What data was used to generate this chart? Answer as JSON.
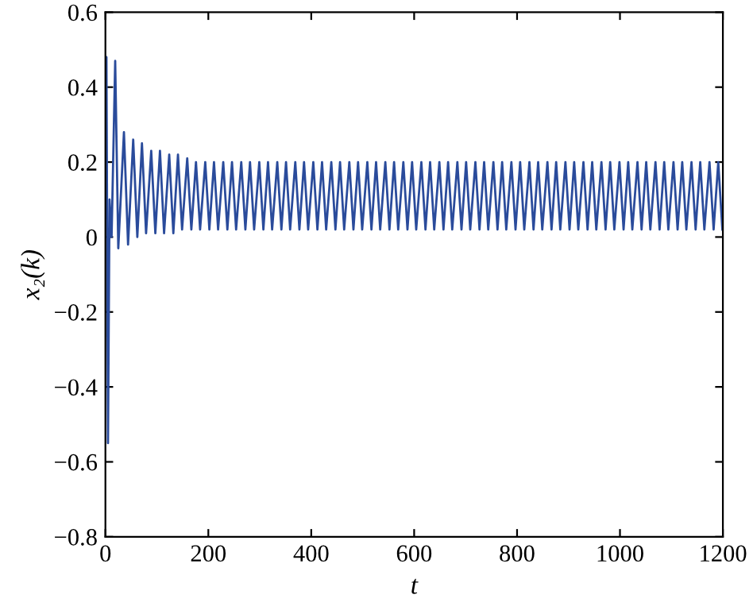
{
  "chart_data": {
    "type": "line",
    "xlabel": "t",
    "ylabel": "x₂(k)",
    "xlim": [
      0,
      1200
    ],
    "ylim": [
      -0.8,
      0.6
    ],
    "xticks": [
      0,
      200,
      400,
      600,
      800,
      1000,
      1200
    ],
    "yticks": [
      {
        "value": -0.8,
        "label": "−0.8"
      },
      {
        "value": -0.6,
        "label": "−0.6"
      },
      {
        "value": -0.4,
        "label": "−0.4"
      },
      {
        "value": -0.2,
        "label": "−0.2"
      },
      0,
      0.2,
      0.4,
      0.6
    ],
    "grid": false,
    "line_style": "solid",
    "marker": "none",
    "series": [
      {
        "color": "#2a4b9b",
        "x": [
          0,
          2,
          5,
          8,
          12,
          19,
          25,
          36,
          44,
          54,
          62,
          71,
          79,
          89,
          97,
          106,
          114,
          124,
          132,
          141,
          149,
          159,
          167,
          176,
          184,
          194,
          202,
          211,
          219,
          229,
          237,
          246,
          254,
          264,
          272,
          281,
          289,
          299,
          307,
          316,
          324,
          334,
          342,
          351,
          359,
          369,
          377,
          386,
          394,
          404,
          412,
          421,
          429,
          439,
          447,
          456,
          464,
          474,
          482,
          491,
          499,
          509,
          517,
          526,
          534,
          544,
          552,
          561,
          569,
          579,
          587,
          596,
          604,
          614,
          622,
          631,
          639,
          649,
          657,
          666,
          674,
          684,
          692,
          701,
          709,
          719,
          727,
          736,
          744,
          754,
          762,
          771,
          779,
          789,
          797,
          806,
          814,
          824,
          832,
          841,
          849,
          859,
          867,
          876,
          884,
          894,
          902,
          911,
          919,
          929,
          937,
          946,
          954,
          964,
          972,
          981,
          989,
          999,
          1007,
          1016,
          1024,
          1034,
          1042,
          1051,
          1059,
          1069,
          1077,
          1086,
          1094,
          1104,
          1112,
          1121,
          1129,
          1139,
          1147,
          1156,
          1164,
          1174,
          1182,
          1191,
          1199
        ],
        "values": [
          0.05,
          0.48,
          -0.55,
          0.1,
          0.0,
          0.47,
          -0.03,
          0.28,
          -0.02,
          0.26,
          0.0,
          0.25,
          0.01,
          0.23,
          0.01,
          0.23,
          0.01,
          0.22,
          0.01,
          0.22,
          0.02,
          0.21,
          0.02,
          0.2,
          0.02,
          0.2,
          0.02,
          0.2,
          0.02,
          0.2,
          0.02,
          0.2,
          0.02,
          0.2,
          0.02,
          0.2,
          0.02,
          0.2,
          0.02,
          0.2,
          0.02,
          0.2,
          0.02,
          0.2,
          0.02,
          0.2,
          0.02,
          0.2,
          0.02,
          0.2,
          0.02,
          0.2,
          0.02,
          0.2,
          0.02,
          0.2,
          0.02,
          0.2,
          0.02,
          0.2,
          0.02,
          0.2,
          0.02,
          0.2,
          0.02,
          0.2,
          0.02,
          0.2,
          0.02,
          0.2,
          0.02,
          0.2,
          0.02,
          0.2,
          0.02,
          0.2,
          0.02,
          0.2,
          0.02,
          0.2,
          0.02,
          0.2,
          0.02,
          0.2,
          0.02,
          0.2,
          0.02,
          0.2,
          0.02,
          0.2,
          0.02,
          0.2,
          0.02,
          0.2,
          0.02,
          0.2,
          0.02,
          0.2,
          0.02,
          0.2,
          0.02,
          0.2,
          0.02,
          0.2,
          0.02,
          0.2,
          0.02,
          0.2,
          0.02,
          0.2,
          0.02,
          0.2,
          0.02,
          0.2,
          0.02,
          0.2,
          0.02,
          0.2,
          0.02,
          0.2,
          0.02,
          0.2,
          0.02,
          0.2,
          0.02,
          0.2,
          0.02,
          0.2,
          0.02,
          0.2,
          0.02,
          0.2,
          0.02,
          0.2,
          0.02,
          0.2,
          0.02,
          0.2,
          0.02,
          0.2,
          0.02
        ]
      }
    ]
  }
}
